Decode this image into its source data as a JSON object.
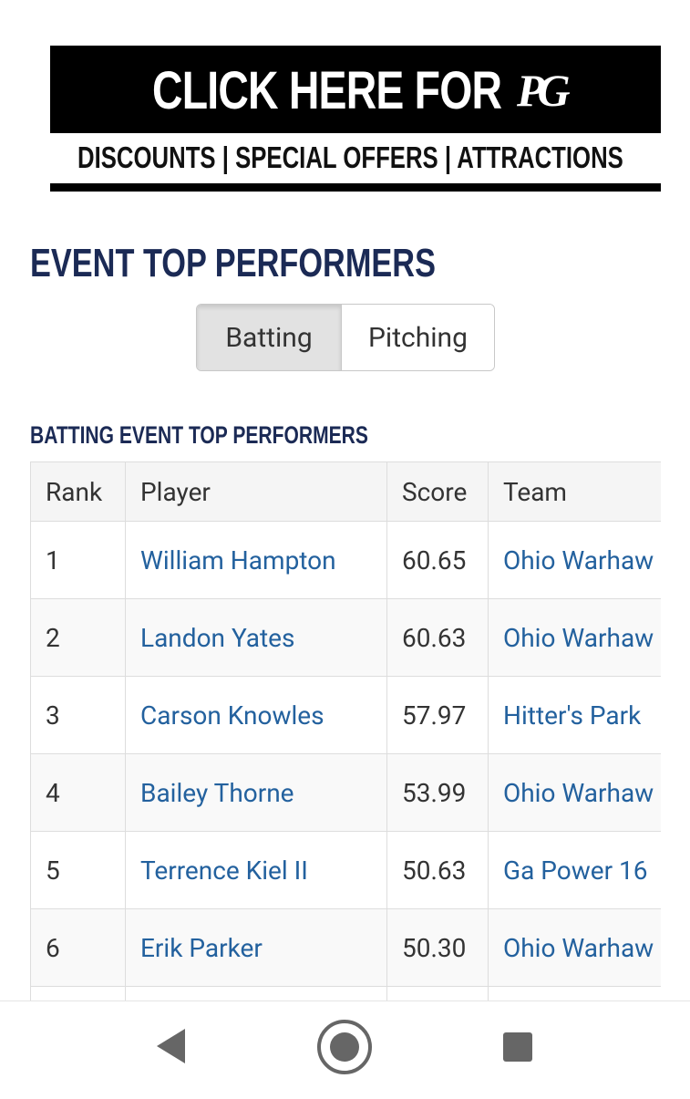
{
  "banner": {
    "headline": "CLICK HERE FOR",
    "logo": "PG",
    "tagline": "DISCOUNTS | SPECIAL OFFERS | ATTRACTIONS"
  },
  "heading": "EVENT TOP PERFORMERS",
  "tabs": [
    "Batting",
    "Pitching"
  ],
  "subheading": "BATTING EVENT TOP PERFORMERS",
  "table": {
    "columns": [
      "Rank",
      "Player",
      "Score",
      "Team"
    ],
    "rows": [
      [
        "1",
        "William Hampton",
        "60.65",
        "Ohio Warhaw"
      ],
      [
        "2",
        "Landon Yates",
        "60.63",
        "Ohio Warhaw"
      ],
      [
        "3",
        "Carson Knowles",
        "57.97",
        "Hitter's Park"
      ],
      [
        "4",
        "Bailey Thorne",
        "53.99",
        "Ohio Warhaw"
      ],
      [
        "5",
        "Terrence Kiel II",
        "50.63",
        "Ga Power 16"
      ],
      [
        "6",
        "Erik Parker",
        "50.30",
        "Ohio Warhaw"
      ]
    ]
  }
}
